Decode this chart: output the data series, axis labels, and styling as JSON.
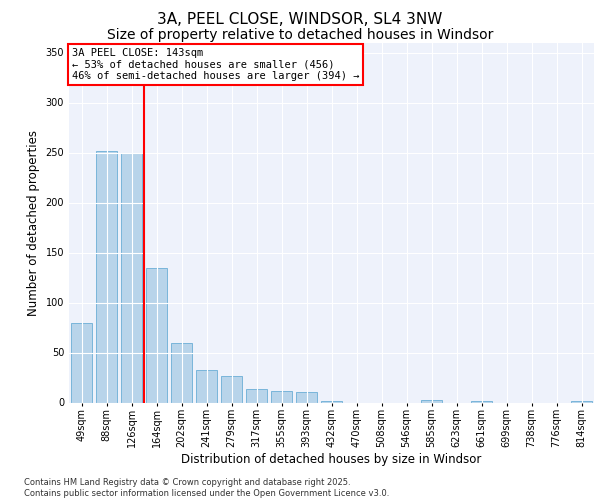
{
  "title_line1": "3A, PEEL CLOSE, WINDSOR, SL4 3NW",
  "title_line2": "Size of property relative to detached houses in Windsor",
  "xlabel": "Distribution of detached houses by size in Windsor",
  "ylabel": "Number of detached properties",
  "categories": [
    "49sqm",
    "88sqm",
    "126sqm",
    "164sqm",
    "202sqm",
    "241sqm",
    "279sqm",
    "317sqm",
    "355sqm",
    "393sqm",
    "432sqm",
    "470sqm",
    "508sqm",
    "546sqm",
    "585sqm",
    "623sqm",
    "661sqm",
    "699sqm",
    "738sqm",
    "776sqm",
    "814sqm"
  ],
  "values": [
    80,
    252,
    250,
    135,
    60,
    33,
    27,
    14,
    12,
    11,
    2,
    0,
    0,
    0,
    3,
    0,
    2,
    0,
    0,
    0,
    2
  ],
  "bar_color": "#b8d4ea",
  "bar_edge_color": "#6baed6",
  "red_line_x": 2.5,
  "annotation_text": "3A PEEL CLOSE: 143sqm\n← 53% of detached houses are smaller (456)\n46% of semi-detached houses are larger (394) →",
  "annotation_box_color": "white",
  "annotation_box_edge": "red",
  "footer_text": "Contains HM Land Registry data © Crown copyright and database right 2025.\nContains public sector information licensed under the Open Government Licence v3.0.",
  "ylim": [
    0,
    360
  ],
  "yticks": [
    0,
    50,
    100,
    150,
    200,
    250,
    300,
    350
  ],
  "bg_color": "#eef2fb",
  "grid_color": "white",
  "title_fontsize": 11,
  "subtitle_fontsize": 10,
  "tick_fontsize": 7,
  "label_fontsize": 8.5,
  "footer_fontsize": 6,
  "annot_fontsize": 7.5
}
